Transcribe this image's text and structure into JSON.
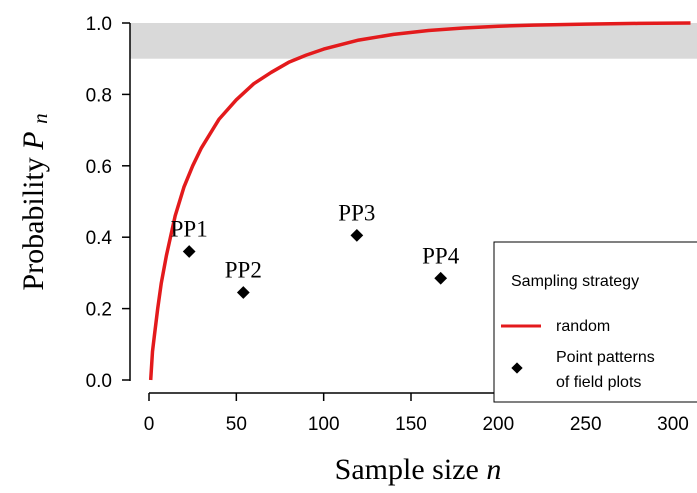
{
  "chart_data": {
    "type": "line",
    "xlabel": "Sample size",
    "xlabel_var": "n",
    "ylabel": "Probability",
    "ylabel_var": "P",
    "ylabel_sub": "n",
    "xlim": [
      0,
      310
    ],
    "ylim": [
      0,
      1.0
    ],
    "x_ticks": [
      0,
      50,
      100,
      150,
      200,
      250,
      300
    ],
    "y_ticks": [
      0.0,
      0.2,
      0.4,
      0.6,
      0.8,
      1.0
    ],
    "x_tick_labels": [
      "0",
      "50",
      "100",
      "150",
      "200",
      "250",
      "300"
    ],
    "y_tick_labels": [
      "0.0",
      "0.2",
      "0.4",
      "0.6",
      "0.8",
      "1.0"
    ],
    "shaded_band": {
      "y_from": 0.9,
      "y_to": 1.0,
      "color": "#d9d9d9"
    },
    "series": [
      {
        "name": "random",
        "kind": "line",
        "color": "#e31a1c",
        "x": [
          1,
          2,
          3,
          5,
          7,
          10,
          15,
          20,
          25,
          30,
          40,
          50,
          60,
          70,
          80,
          90,
          100,
          120,
          140,
          160,
          180,
          200,
          220,
          250,
          280,
          310
        ],
        "y": [
          0.0,
          0.08,
          0.12,
          0.2,
          0.27,
          0.35,
          0.46,
          0.54,
          0.6,
          0.65,
          0.73,
          0.785,
          0.83,
          0.862,
          0.89,
          0.91,
          0.927,
          0.952,
          0.968,
          0.979,
          0.986,
          0.991,
          0.994,
          0.997,
          0.999,
          1.0
        ]
      },
      {
        "name": "Point patterns of field plots",
        "kind": "points",
        "color": "#000000",
        "points": [
          {
            "label": "PP1",
            "x": 23,
            "y": 0.36
          },
          {
            "label": "PP2",
            "x": 54,
            "y": 0.245
          },
          {
            "label": "PP3",
            "x": 119,
            "y": 0.405
          },
          {
            "label": "PP4",
            "x": 167,
            "y": 0.285
          }
        ]
      }
    ],
    "legend": {
      "title": "Sampling strategy",
      "placement": "bottom-right",
      "entries": [
        {
          "label": "random",
          "symbol": "line",
          "color": "#e31a1c"
        },
        {
          "label_line1": "Point patterns",
          "label_line2": "of field plots",
          "symbol": "diamond",
          "color": "#000000"
        }
      ]
    }
  }
}
